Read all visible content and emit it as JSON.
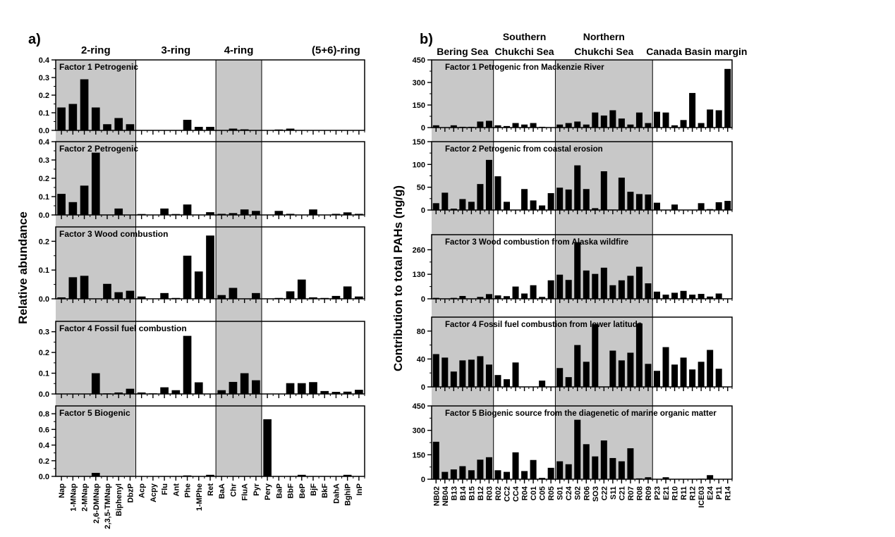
{
  "chart_data": [
    {
      "type": "bar",
      "panel_label": "a)",
      "ylabel": "Relative abundance",
      "group_labels": [
        "2-ring",
        "3-ring",
        "4-ring",
        "(5+6)-ring"
      ],
      "groups": [
        {
          "name": "2-ring",
          "start": 0,
          "end": 6,
          "shaded": true
        },
        {
          "name": "3-ring",
          "start": 7,
          "end": 13,
          "shaded": false
        },
        {
          "name": "4-ring",
          "start": 14,
          "end": 17,
          "shaded": true
        },
        {
          "name": "(5+6)-ring",
          "start": 18,
          "end": 30,
          "shaded": false
        }
      ],
      "categories": [
        "Nap",
        "1-MNap",
        "2-MNap",
        "2,6-DMNap",
        "2,3,5-TMNap",
        "Biphenyl",
        "DbzP",
        "Acp",
        "Acpy",
        "Flu",
        "Ant",
        "Phe",
        "1-MPhe",
        "Ret",
        "BaA",
        "Chr",
        "FluA",
        "Pyr",
        "Pery",
        "BaP",
        "BbF",
        "BeP",
        "BjF",
        "BkF",
        "DahA",
        "BghiP",
        "InP"
      ],
      "series": [
        {
          "name": "Factor 1 Petrogenic",
          "ylim": [
            0,
            0.4
          ],
          "yticks": [
            "0.0",
            "0.1",
            "0.2",
            "0.3",
            "0.4"
          ],
          "values": [
            0.13,
            0.15,
            0.29,
            0.13,
            0.035,
            0.07,
            0.035,
            0,
            0,
            0,
            0,
            0.06,
            0.02,
            0.02,
            0,
            0.01,
            0.006,
            0,
            0,
            0.005,
            0.01,
            0,
            0,
            0,
            0,
            0,
            0
          ]
        },
        {
          "name": "Factor 2 Petrogenic",
          "ylim": [
            0,
            0.4
          ],
          "yticks": [
            "0.0",
            "0.1",
            "0.2",
            "0.3",
            "0.4"
          ],
          "values": [
            0.115,
            0.07,
            0.16,
            0.34,
            0,
            0.035,
            0,
            0.005,
            0,
            0.035,
            0.005,
            0.057,
            0,
            0.015,
            0.006,
            0.01,
            0.03,
            0.022,
            0,
            0.022,
            0.006,
            0,
            0.03,
            0,
            0.006,
            0.014,
            0.006
          ]
        },
        {
          "name": "Factor 3 Wood combustion",
          "ylim": [
            0,
            0.25
          ],
          "yticks": [
            "0.0",
            "0.1",
            "0.2"
          ],
          "values": [
            0.005,
            0.075,
            0.08,
            0,
            0.052,
            0.023,
            0.028,
            0.008,
            0,
            0.02,
            0.003,
            0.15,
            0.095,
            0.22,
            0.013,
            0.038,
            0,
            0.02,
            0,
            0.003,
            0.026,
            0.067,
            0.005,
            0.003,
            0.01,
            0.043,
            0.008
          ]
        },
        {
          "name": "Factor 4 Fossil fuel combustion",
          "ylim": [
            0,
            0.35
          ],
          "yticks": [
            "0.0",
            "0.1",
            "0.2",
            "0.3"
          ],
          "values": [
            0,
            0,
            0,
            0.1,
            0.003,
            0.007,
            0.025,
            0.007,
            0.003,
            0.032,
            0.018,
            0.28,
            0.056,
            0,
            0.018,
            0.058,
            0.1,
            0.066,
            0,
            0,
            0.052,
            0.052,
            0.057,
            0.014,
            0.01,
            0.011,
            0.02
          ]
        },
        {
          "name": "Factor 5 Biogenic",
          "ylim": [
            0,
            0.9
          ],
          "yticks": [
            "0.0",
            "0.2",
            "0.4",
            "0.6",
            "0.8"
          ],
          "values": [
            0.005,
            0,
            0,
            0.045,
            0.005,
            0.005,
            0.005,
            0,
            0,
            0.005,
            0.005,
            0.012,
            0.005,
            0.02,
            0.005,
            0.005,
            0,
            0.005,
            0.73,
            0.005,
            0.005,
            0.02,
            0.005,
            0.005,
            0,
            0.02,
            0.005
          ]
        }
      ]
    },
    {
      "type": "bar",
      "panel_label": "b)",
      "ylabel": "Contribution to total PAHs (ng/g)",
      "group_labels": [
        "Bering Sea",
        "Southern Chukchi Sea",
        "Northern Chukchi Sea",
        "Canada Basin margin"
      ],
      "groups": [
        {
          "name": "Bering Sea",
          "line1": "",
          "line2": "Bering Sea",
          "start": 0,
          "end": 6,
          "shaded": true
        },
        {
          "name": "Southern Chukchi Sea",
          "line1": "Southern",
          "line2": "Chukchi Sea",
          "start": 7,
          "end": 13,
          "shaded": false
        },
        {
          "name": "Northern Chukchi Sea",
          "line1": "Northern",
          "line2": "Chukchi Sea",
          "start": 14,
          "end": 24,
          "shaded": true
        },
        {
          "name": "Canada Basin margin",
          "line1": "",
          "line2": "Canada Basin margin",
          "start": 25,
          "end": 34,
          "shaded": false
        }
      ],
      "categories": [
        "NB02",
        "NB04",
        "B13",
        "B14",
        "B15",
        "B12",
        "R03",
        "R02",
        "CC2",
        "CC4",
        "R04",
        "C01",
        "C05",
        "R05",
        "S01",
        "C24",
        "S02",
        "R06",
        "SO3",
        "C22",
        "S11",
        "C21",
        "R07",
        "R08",
        "R09",
        "P23",
        "E21",
        "R10",
        "R11",
        "R12",
        "ICE03",
        "E24",
        "P11",
        "R14"
      ],
      "series": [
        {
          "name": "Factor 1 Petrogenic fron Mackenzie River",
          "ylim": [
            0,
            450
          ],
          "yticks": [
            "0",
            "150",
            "300",
            "450"
          ],
          "values": [
            15,
            0,
            15,
            5,
            5,
            40,
            45,
            15,
            10,
            30,
            20,
            30,
            5,
            0,
            20,
            30,
            40,
            20,
            100,
            80,
            115,
            60,
            20,
            100,
            30,
            105,
            100,
            15,
            50,
            230,
            30,
            120,
            115,
            390
          ]
        },
        {
          "name": "Factor 2 Petrogenic from coastal erosion",
          "ylim": [
            0,
            150
          ],
          "yticks": [
            "0",
            "50",
            "100",
            "150"
          ],
          "values": [
            15,
            38,
            3,
            24,
            18,
            57,
            110,
            74,
            18,
            0,
            46,
            21,
            10,
            37,
            49,
            45,
            98,
            46,
            4,
            85,
            1,
            71,
            40,
            35,
            34,
            16,
            0,
            12,
            0,
            0,
            15,
            2,
            17,
            20
          ]
        },
        {
          "name": "Factor 3 Wood combustion from Alaska wildfire",
          "ylim": [
            0,
            340
          ],
          "yticks": [
            "0",
            "130",
            "260"
          ],
          "values": [
            5,
            0,
            5,
            15,
            0,
            10,
            25,
            18,
            14,
            65,
            28,
            72,
            10,
            98,
            128,
            100,
            300,
            150,
            132,
            165,
            72,
            98,
            122,
            170,
            82,
            38,
            22,
            32,
            42,
            22,
            26,
            12,
            28,
            0
          ]
        },
        {
          "name": "Factor 4 Fossil fuel combustion from lower latitude",
          "ylim": [
            0,
            100
          ],
          "yticks": [
            "0",
            "40",
            "80"
          ],
          "values": [
            47,
            42,
            22,
            38,
            39,
            44,
            32,
            17,
            11,
            35,
            0,
            0,
            9,
            0,
            27,
            14,
            60,
            36,
            90,
            0,
            52,
            38,
            49,
            91,
            33,
            23,
            57,
            32,
            42,
            25,
            36,
            53,
            26,
            0
          ]
        },
        {
          "name": "Factor 5 Biogenic source from the diagenetic of marine organic matter",
          "ylim": [
            0,
            450
          ],
          "yticks": [
            "0",
            "150",
            "300",
            "450"
          ],
          "values": [
            230,
            45,
            60,
            80,
            55,
            120,
            135,
            55,
            45,
            165,
            50,
            118,
            8,
            70,
            110,
            92,
            365,
            215,
            140,
            238,
            130,
            110,
            190,
            5,
            12,
            0,
            12,
            0,
            0,
            0,
            3,
            25,
            0,
            0
          ]
        }
      ]
    }
  ]
}
